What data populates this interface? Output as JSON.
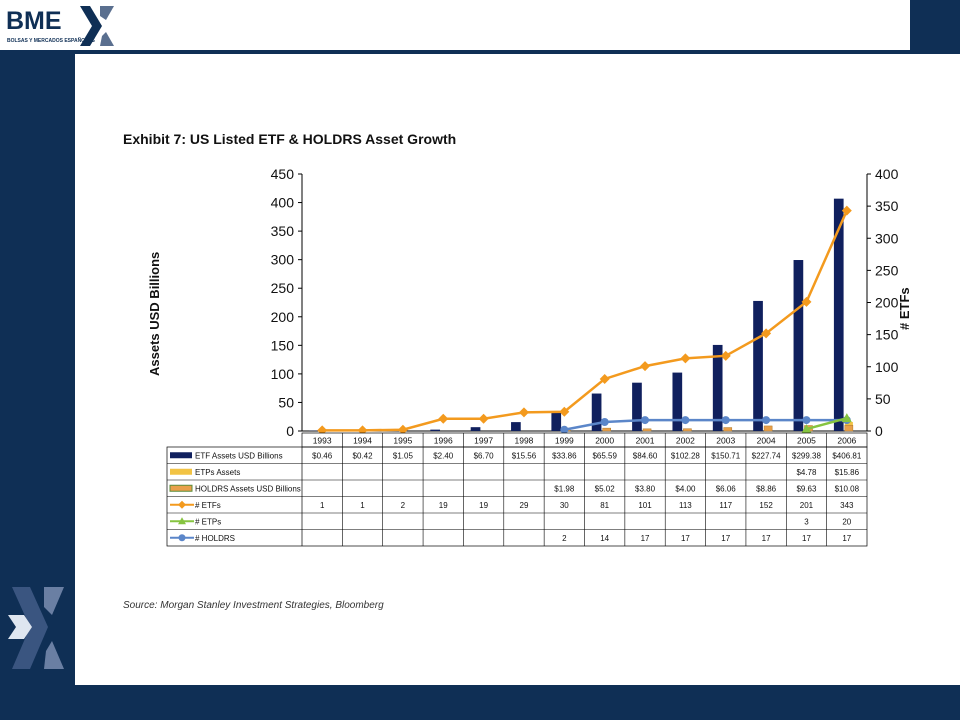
{
  "header": {
    "logo_text": "BME",
    "logo_subtitle": "BOLSAS Y MERCADOS ESPAÑOLES"
  },
  "exhibit": {
    "title": "Exhibit 7: US Listed ETF & HOLDRS Asset Growth",
    "source": "Source: Morgan Stanley Investment Strategies, Bloomberg"
  },
  "colors": {
    "navy": "#0f2f55",
    "etf_bar": "#10205e",
    "etps_bar": "#f2c344",
    "holdrs_bar": "#e9a04a",
    "etfs_line": "#f39a1e",
    "etps_line": "#86c440",
    "holdrs_line": "#5b86c9"
  },
  "chart_data": {
    "type": "bar",
    "title": "Exhibit 7: US Listed ETF & HOLDRS Asset Growth",
    "ylabel": "Assets USD Billions",
    "y2label": "# ETFs",
    "ylim": [
      0,
      450
    ],
    "y2lim": [
      0,
      400
    ],
    "yticks": [
      "0",
      "50",
      "100",
      "150",
      "200",
      "250",
      "300",
      "350",
      "400",
      "450"
    ],
    "y2ticks": [
      "0",
      "50",
      "100",
      "150",
      "200",
      "250",
      "300",
      "350",
      "400"
    ],
    "categories": [
      "1993",
      "1994",
      "1995",
      "1996",
      "1997",
      "1998",
      "1999",
      "2000",
      "2001",
      "2002",
      "2003",
      "2004",
      "2005",
      "2006"
    ],
    "series": [
      {
        "name": "ETF Assets USD Billions",
        "kind": "bar",
        "axis": "left",
        "values": [
          0.46,
          0.42,
          1.05,
          2.4,
          6.7,
          15.56,
          33.86,
          65.59,
          84.6,
          102.28,
          150.71,
          227.74,
          299.38,
          406.81
        ],
        "labels": [
          "$0.46",
          "$0.42",
          "$1.05",
          "$2.40",
          "$6.70",
          "$15.56",
          "$33.86",
          "$65.59",
          "$84.60",
          "$102.28",
          "$150.71",
          "$227.74",
          "$299.38",
          "$406.81"
        ]
      },
      {
        "name": "ETPs Assets",
        "kind": "bar",
        "axis": "left",
        "values": [
          null,
          null,
          null,
          null,
          null,
          null,
          null,
          null,
          null,
          null,
          null,
          null,
          4.78,
          15.86
        ],
        "labels": [
          "",
          "",
          "",
          "",
          "",
          "",
          "",
          "",
          "",
          "",
          "",
          "",
          "$4.78",
          "$15.86"
        ]
      },
      {
        "name": "HOLDRS Assets USD Billions",
        "kind": "bar",
        "axis": "left",
        "values": [
          null,
          null,
          null,
          null,
          null,
          null,
          1.98,
          5.02,
          3.8,
          4.0,
          6.06,
          8.86,
          9.63,
          10.08
        ],
        "labels": [
          "",
          "",
          "",
          "",
          "",
          "",
          "$1.98",
          "$5.02",
          "$3.80",
          "$4.00",
          "$6.06",
          "$8.86",
          "$9.63",
          "$10.08"
        ]
      },
      {
        "name": "# ETFs",
        "kind": "line",
        "axis": "right",
        "values": [
          1,
          1,
          2,
          19,
          19,
          29,
          30,
          81,
          101,
          113,
          117,
          152,
          201,
          343
        ],
        "labels": [
          "1",
          "1",
          "2",
          "19",
          "19",
          "29",
          "30",
          "81",
          "101",
          "113",
          "117",
          "152",
          "201",
          "343"
        ]
      },
      {
        "name": "# ETPs",
        "kind": "line",
        "axis": "right",
        "values": [
          null,
          null,
          null,
          null,
          null,
          null,
          null,
          null,
          null,
          null,
          null,
          null,
          3,
          20
        ],
        "labels": [
          "",
          "",
          "",
          "",
          "",
          "",
          "",
          "",
          "",
          "",
          "",
          "",
          "3",
          "20"
        ]
      },
      {
        "name": "# HOLDRS",
        "kind": "line",
        "axis": "right",
        "values": [
          null,
          null,
          null,
          null,
          null,
          null,
          2,
          14,
          17,
          17,
          17,
          17,
          17,
          17
        ],
        "labels": [
          "",
          "",
          "",
          "",
          "",
          "",
          "2",
          "14",
          "17",
          "17",
          "17",
          "17",
          "17",
          "17"
        ]
      }
    ]
  }
}
